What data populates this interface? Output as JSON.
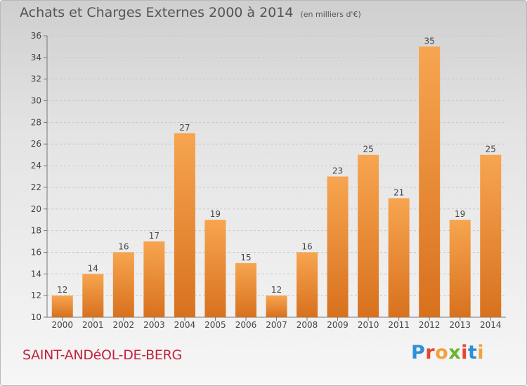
{
  "title": "Achats et Charges Externes 2000 à 2014",
  "subtitle": "(en milliers d'€)",
  "commune": "SAINT-ANDéOL-DE-BERG",
  "brand": "Proxiti",
  "colors": {
    "bar_light": "#f7a550",
    "bar_dark": "#d8711e",
    "commune": "#c2213d",
    "brand_letters": [
      "#2f8fd8",
      "#e8462a",
      "#f2a23c",
      "#6bb42e",
      "#e8462a",
      "#2f8fd8",
      "#f2a23c"
    ]
  },
  "chart_data": {
    "type": "bar",
    "categories": [
      "2000",
      "2001",
      "2002",
      "2003",
      "2004",
      "2005",
      "2006",
      "2007",
      "2008",
      "2009",
      "2010",
      "2011",
      "2012",
      "2013",
      "2014"
    ],
    "values": [
      12,
      14,
      16,
      17,
      27,
      19,
      15,
      12,
      16,
      23,
      25,
      21,
      35,
      19,
      25
    ],
    "ylim": [
      10,
      36
    ],
    "yticks": [
      10,
      12,
      14,
      16,
      18,
      20,
      22,
      24,
      26,
      28,
      30,
      32,
      34,
      36
    ],
    "grid": true,
    "xlabel": "",
    "ylabel": ""
  }
}
